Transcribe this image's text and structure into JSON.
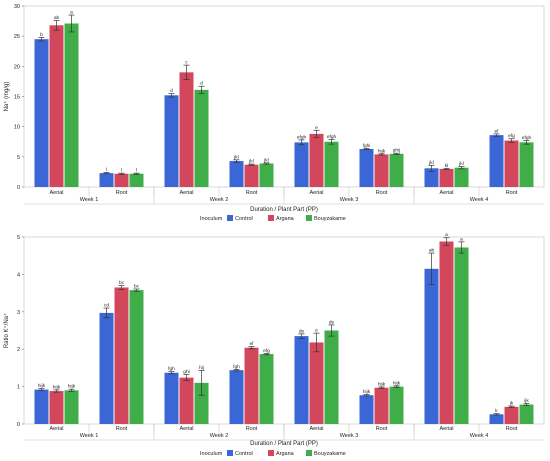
{
  "colors": {
    "Control": "#3a66d6",
    "Argana": "#d2475c",
    "Bouyzakame": "#3fae49"
  },
  "chart_data": [
    {
      "type": "bar",
      "ylabel": "Na⁺ (mg/g)",
      "xlabel": "Duration / Plant Part (PP)",
      "ylim": [
        0,
        30
      ],
      "yticks": [
        0,
        5,
        10,
        15,
        20,
        25,
        30
      ],
      "groups": [
        "Week 1",
        "Week 2",
        "Week 3",
        "Week 4"
      ],
      "categories": [
        "Aerial",
        "Root",
        "Aerial",
        "Root",
        "Aerial",
        "Root",
        "Aerial",
        "Root"
      ],
      "legend_title": "Inoculum",
      "legend_position": "bottom",
      "series": [
        {
          "name": "Control",
          "values": [
            24.5,
            2.3,
            15.2,
            4.3,
            7.4,
            6.3,
            3.1,
            8.6
          ],
          "errors": [
            0.3,
            0.1,
            0.3,
            0.2,
            0.4,
            0.1,
            0.5,
            0.2
          ],
          "labels": [
            "b",
            "l",
            "d",
            "jkl",
            "efgh",
            "fghi",
            "jkl",
            "ef"
          ]
        },
        {
          "name": "Argana",
          "values": [
            26.8,
            2.2,
            19.0,
            3.7,
            8.8,
            5.4,
            3.0,
            7.7
          ],
          "errors": [
            0.8,
            0.1,
            1.2,
            0.1,
            0.6,
            0.1,
            0.1,
            0.3
          ],
          "labels": [
            "ab",
            "l",
            "c",
            "jkl",
            "e",
            "hijk",
            "kl",
            "efg"
          ]
        },
        {
          "name": "Bouyzakame",
          "values": [
            27.1,
            2.2,
            16.1,
            3.9,
            7.5,
            5.5,
            3.2,
            7.4
          ],
          "errors": [
            1.4,
            0.1,
            0.6,
            0.1,
            0.4,
            0.1,
            0.2,
            0.3
          ],
          "labels": [
            "a",
            "l",
            "d",
            "jkl",
            "efgh",
            "ghij",
            "jkl",
            "efgh"
          ]
        }
      ]
    },
    {
      "type": "bar",
      "ylabel": "Ratio K⁺/Na⁺",
      "xlabel": "Duration / Plant Part (PP)",
      "ylim": [
        0,
        5
      ],
      "yticks": [
        0,
        1,
        2,
        3,
        4,
        5
      ],
      "groups": [
        "Week 1",
        "Week 2",
        "Week 3",
        "Week 4"
      ],
      "categories": [
        "Aerial",
        "Root",
        "Aerial",
        "Root",
        "Aerial",
        "Root",
        "Aerial",
        "Root"
      ],
      "legend_title": "Inoculum",
      "legend_position": "bottom",
      "series": [
        {
          "name": "Control",
          "values": [
            0.92,
            2.97,
            1.37,
            1.44,
            2.35,
            0.77,
            4.15,
            0.26
          ],
          "errors": [
            0.03,
            0.13,
            0.03,
            0.02,
            0.06,
            0.02,
            0.42,
            0.02
          ],
          "labels": [
            "hijk",
            "cd",
            "fgh",
            "fgh",
            "de",
            "hijk",
            "ab",
            "k"
          ]
        },
        {
          "name": "Argana",
          "values": [
            0.88,
            3.65,
            1.24,
            2.04,
            2.18,
            0.97,
            4.88,
            0.46
          ],
          "errors": [
            0.03,
            0.05,
            0.08,
            0.03,
            0.25,
            0.02,
            0.1,
            0.02
          ],
          "labels": [
            "hijk",
            "bc",
            "ghi",
            "ef",
            "e",
            "hijk",
            "a",
            "jk"
          ]
        },
        {
          "name": "Bouyzakame",
          "values": [
            0.9,
            3.58,
            1.1,
            1.87,
            2.5,
            1.0,
            4.72,
            0.52
          ],
          "errors": [
            0.03,
            0.03,
            0.33,
            0.02,
            0.15,
            0.02,
            0.15,
            0.03
          ],
          "labels": [
            "hijk",
            "bc",
            "hij",
            "efg",
            "de",
            "hijk",
            "a",
            "ijk"
          ]
        }
      ]
    }
  ]
}
